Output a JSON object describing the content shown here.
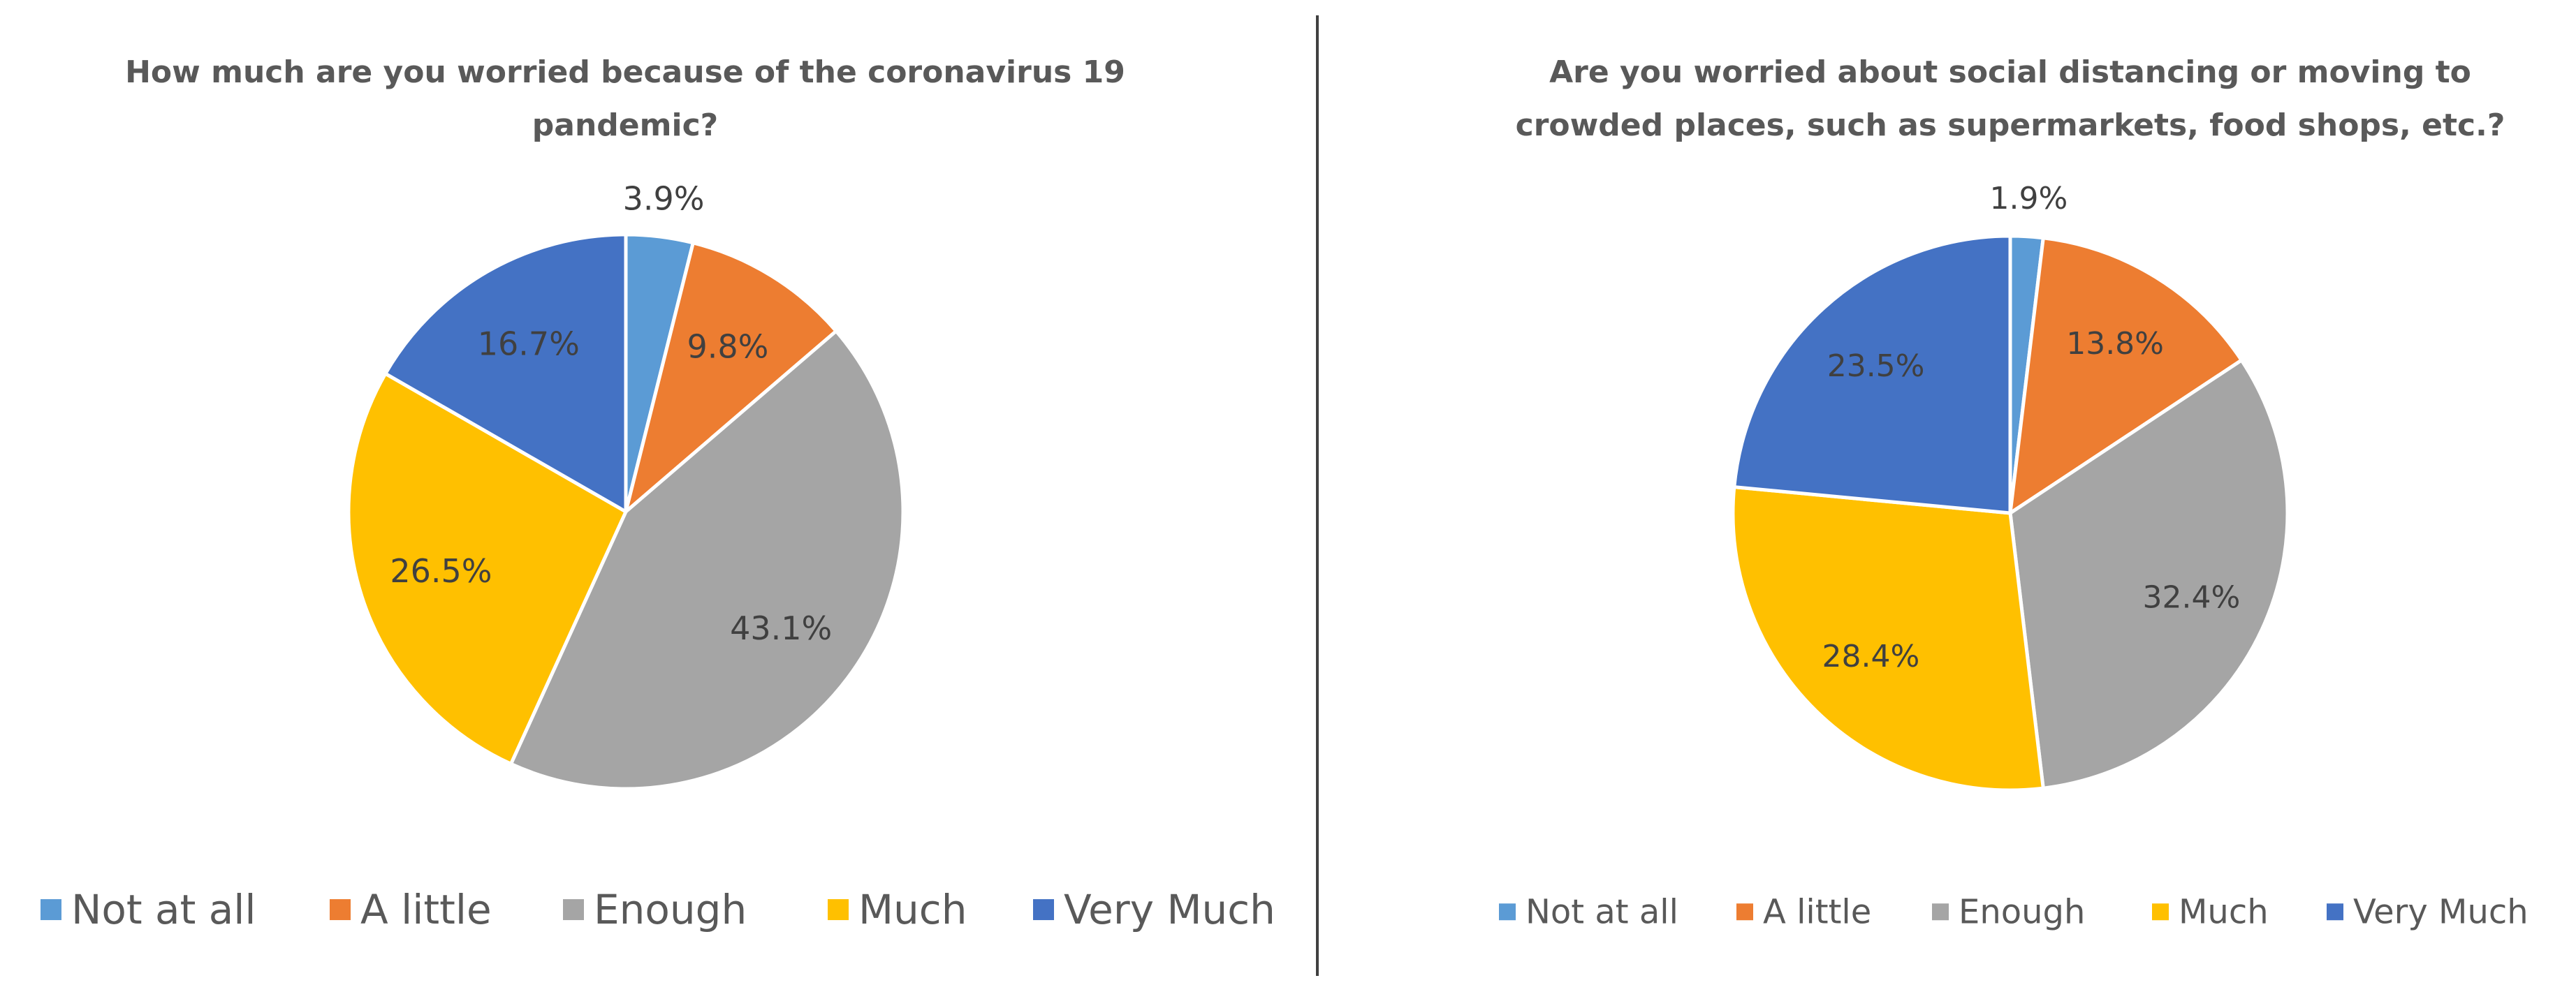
{
  "chart_data": [
    {
      "type": "pie",
      "title_lines": [
        "How much are you worried because of the coronavirus 19",
        "pandemic?"
      ],
      "categories": [
        "Not at all",
        "A little",
        "Enough",
        "Much",
        "Very Much"
      ],
      "values": [
        3.9,
        9.8,
        43.1,
        26.5,
        16.7
      ],
      "labels": [
        "3.9%",
        "9.8%",
        "43.1%",
        "26.5%",
        "16.7%"
      ],
      "colors": [
        "#5B9BD5",
        "#ED7D31",
        "#A5A5A5",
        "#FFC000",
        "#4472C4"
      ],
      "legend_position": "bottom"
    },
    {
      "type": "pie",
      "title_lines": [
        "Are you worried about social distancing or moving to",
        "crowded places, such as supermarkets, food shops, etc.?"
      ],
      "categories": [
        "Not at all",
        "A little",
        "Enough",
        "Much",
        "Very Much"
      ],
      "values": [
        1.9,
        13.8,
        32.4,
        28.4,
        23.5
      ],
      "labels": [
        "1.9%",
        "13.8%",
        "32.4%",
        "28.4%",
        "23.5%"
      ],
      "colors": [
        "#5B9BD5",
        "#ED7D31",
        "#A5A5A5",
        "#FFC000",
        "#4472C4"
      ],
      "legend_position": "bottom"
    }
  ]
}
